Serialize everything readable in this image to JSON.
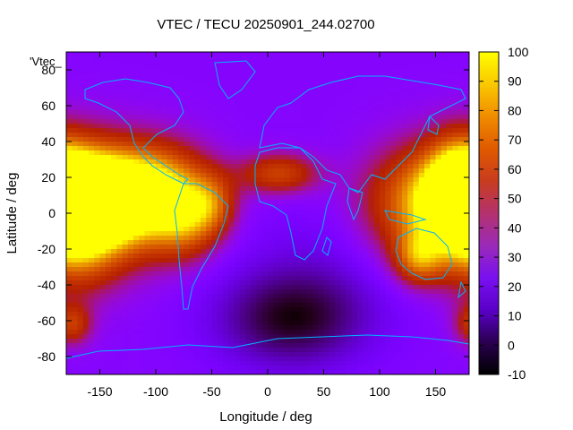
{
  "chart_data": {
    "type": "heatmap",
    "title": "VTEC / TECU 20250901_244.02700",
    "xlabel": "Longitude / deg",
    "ylabel": "Latitude / deg",
    "series_key": "'Vtec_",
    "xlim": [
      -180,
      180
    ],
    "ylim": [
      -90,
      90
    ],
    "x_ticks": [
      "-150",
      "-100",
      "-50",
      "0",
      "50",
      "100",
      "150"
    ],
    "y_ticks": [
      "-80",
      "-60",
      "-40",
      "-20",
      "0",
      "20",
      "40",
      "60",
      "80"
    ],
    "colorbar": {
      "min": -10,
      "max": 100,
      "ticks": [
        "-10",
        "0",
        "10",
        "20",
        "30",
        "40",
        "50",
        "60",
        "70",
        "80",
        "90",
        "100"
      ]
    },
    "features": [
      {
        "lon": -155,
        "lat": 8,
        "vtec": 95,
        "extent_lon": 35,
        "extent_lat": 16
      },
      {
        "lon": -140,
        "lat": 5,
        "vtec": 85,
        "extent_lon": 45,
        "extent_lat": 22
      },
      {
        "lon": -170,
        "lat": -5,
        "vtec": 70,
        "extent_lon": 25,
        "extent_lat": 25
      },
      {
        "lon": -95,
        "lat": 15,
        "vtec": 65,
        "extent_lon": 30,
        "extent_lat": 16
      },
      {
        "lon": -75,
        "lat": -5,
        "vtec": 60,
        "extent_lon": 20,
        "extent_lat": 14
      },
      {
        "lon": -50,
        "lat": 5,
        "vtec": 55,
        "extent_lon": 15,
        "extent_lat": 12
      },
      {
        "lon": 10,
        "lat": 22,
        "vtec": 60,
        "extent_lon": 25,
        "extent_lat": 8
      },
      {
        "lon": 145,
        "lat": 5,
        "vtec": 80,
        "extent_lon": 40,
        "extent_lat": 22
      },
      {
        "lon": 135,
        "lat": -25,
        "vtec": 65,
        "extent_lon": 15,
        "extent_lat": 10
      },
      {
        "lon": 170,
        "lat": 15,
        "vtec": 70,
        "extent_lon": 18,
        "extent_lat": 18
      },
      {
        "lon": -175,
        "lat": -62,
        "vtec": 55,
        "extent_lon": 12,
        "extent_lat": 8
      },
      {
        "lon": 20,
        "lat": -60,
        "vtec": -5,
        "extent_lon": 50,
        "extent_lat": 20
      },
      {
        "lon": 50,
        "lat": -30,
        "vtec": 12,
        "extent_lon": 60,
        "extent_lat": 30
      }
    ],
    "background_vtec": 20,
    "grid": false,
    "legend": "colorbar-right"
  }
}
